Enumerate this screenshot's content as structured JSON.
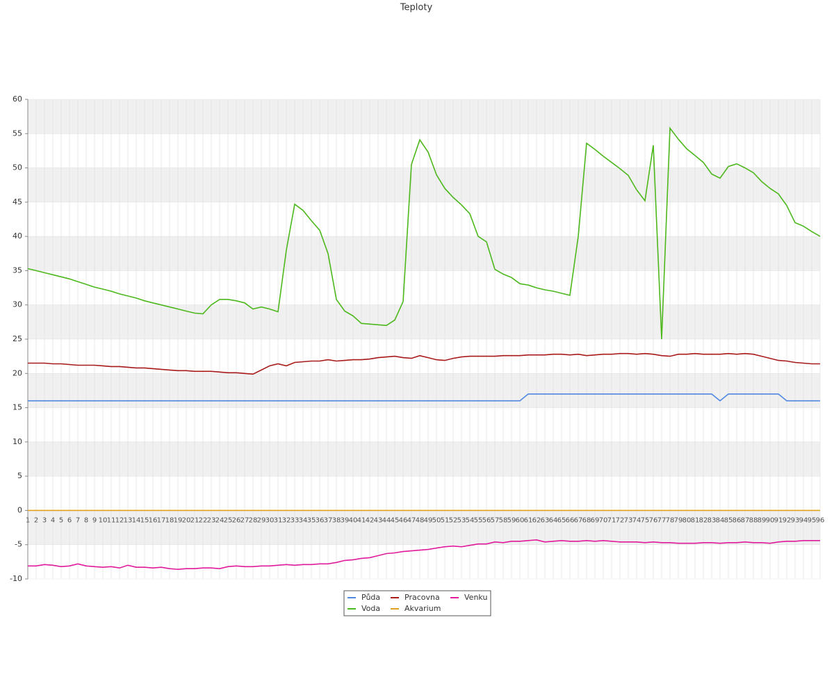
{
  "chart_data": {
    "type": "line",
    "title": "Teploty",
    "x": [
      1,
      2,
      3,
      4,
      5,
      6,
      7,
      8,
      9,
      10,
      11,
      12,
      13,
      14,
      15,
      16,
      17,
      18,
      19,
      20,
      21,
      22,
      23,
      24,
      25,
      26,
      27,
      28,
      29,
      30,
      31,
      32,
      33,
      34,
      35,
      36,
      37,
      38,
      39,
      40,
      41,
      42,
      43,
      44,
      45,
      46,
      47,
      48,
      49,
      50,
      51,
      52,
      53,
      54,
      55,
      56,
      57,
      58,
      59,
      60,
      61,
      62,
      63,
      64,
      65,
      66,
      67,
      68,
      69,
      70,
      71,
      72,
      73,
      74,
      75,
      76,
      77,
      78,
      79,
      80,
      81,
      82,
      83,
      84,
      85,
      86,
      87,
      88,
      89,
      90,
      91,
      92,
      93,
      94,
      95,
      96
    ],
    "series": [
      {
        "name": "Půda",
        "color": "#4f86e0",
        "values": [
          16,
          16,
          16,
          16,
          16,
          16,
          16,
          16,
          16,
          16,
          16,
          16,
          16,
          16,
          16,
          16,
          16,
          16,
          16,
          16,
          16,
          16,
          16,
          16,
          16,
          16,
          16,
          16,
          16,
          16,
          16,
          16,
          16,
          16,
          16,
          16,
          16,
          16,
          16,
          16,
          16,
          16,
          16,
          16,
          16,
          16,
          16,
          16,
          16,
          16,
          16,
          16,
          16,
          16,
          16,
          16,
          16,
          16,
          16,
          16,
          17,
          17,
          17,
          17,
          17,
          17,
          17,
          17,
          17,
          17,
          17,
          17,
          17,
          17,
          17,
          17,
          17,
          17,
          17,
          17,
          17,
          17,
          17,
          16,
          17,
          17,
          17,
          17,
          17,
          17,
          17,
          16,
          16,
          16,
          16,
          16
        ]
      },
      {
        "name": "Voda",
        "color": "#4cb81c",
        "values": [
          35.3,
          35.0,
          34.7,
          34.4,
          34.1,
          33.8,
          33.4,
          33.0,
          32.6,
          32.3,
          32.0,
          31.6,
          31.3,
          31.0,
          30.6,
          30.3,
          30.0,
          29.7,
          29.4,
          29.1,
          28.8,
          28.7,
          30.0,
          30.8,
          30.8,
          30.6,
          30.3,
          29.4,
          29.7,
          29.4,
          29.0,
          38.0,
          44.7,
          43.8,
          42.3,
          40.9,
          37.5,
          30.8,
          29.1,
          28.4,
          27.3,
          27.2,
          27.1,
          27.0,
          27.8,
          30.5,
          50.5,
          54.1,
          52.3,
          49.0,
          47.0,
          45.7,
          44.6,
          43.3,
          40.0,
          39.2,
          35.2,
          34.5,
          34.0,
          33.1,
          32.9,
          32.5,
          32.2,
          32.0,
          31.7,
          31.4,
          40.0,
          53.6,
          52.7,
          51.7,
          50.8,
          49.9,
          48.9,
          46.8,
          45.2,
          53.3,
          25.0,
          55.8,
          54.2,
          52.8,
          51.8,
          50.8,
          49.1,
          48.5,
          50.2,
          50.6,
          50.0,
          49.3,
          48.0,
          47.0,
          46.2,
          44.5,
          42.0,
          41.5,
          40.7,
          40.0
        ]
      },
      {
        "name": "Pracovna",
        "color": "#a81a1a",
        "values": [
          21.5,
          21.5,
          21.5,
          21.4,
          21.4,
          21.3,
          21.2,
          21.2,
          21.2,
          21.1,
          21.0,
          21.0,
          20.9,
          20.8,
          20.8,
          20.7,
          20.6,
          20.5,
          20.4,
          20.4,
          20.3,
          20.3,
          20.3,
          20.2,
          20.1,
          20.1,
          20.0,
          19.9,
          20.5,
          21.1,
          21.4,
          21.1,
          21.6,
          21.7,
          21.8,
          21.8,
          22.0,
          21.8,
          21.9,
          22.0,
          22.0,
          22.1,
          22.3,
          22.4,
          22.5,
          22.3,
          22.2,
          22.6,
          22.3,
          22.0,
          21.9,
          22.2,
          22.4,
          22.5,
          22.5,
          22.5,
          22.5,
          22.6,
          22.6,
          22.6,
          22.7,
          22.7,
          22.7,
          22.8,
          22.8,
          22.7,
          22.8,
          22.6,
          22.7,
          22.8,
          22.8,
          22.9,
          22.9,
          22.8,
          22.9,
          22.8,
          22.6,
          22.5,
          22.8,
          22.8,
          22.9,
          22.8,
          22.8,
          22.8,
          22.9,
          22.8,
          22.9,
          22.8,
          22.5,
          22.2,
          21.9,
          21.8,
          21.6,
          21.5,
          21.4,
          21.4
        ]
      },
      {
        "name": "Akvarium",
        "color": "#e0a020",
        "values": [
          0,
          0,
          0,
          0,
          0,
          0,
          0,
          0,
          0,
          0,
          0,
          0,
          0,
          0,
          0,
          0,
          0,
          0,
          0,
          0,
          0,
          0,
          0,
          0,
          0,
          0,
          0,
          0,
          0,
          0,
          0,
          0,
          0,
          0,
          0,
          0,
          0,
          0,
          0,
          0,
          0,
          0,
          0,
          0,
          0,
          0,
          0,
          0,
          0,
          0,
          0,
          0,
          0,
          0,
          0,
          0,
          0,
          0,
          0,
          0,
          0,
          0,
          0,
          0,
          0,
          0,
          0,
          0,
          0,
          0,
          0,
          0,
          0,
          0,
          0,
          0,
          0,
          0,
          0,
          0,
          0,
          0,
          0,
          0,
          0,
          0,
          0,
          0,
          0,
          0,
          0,
          0,
          0,
          0,
          0,
          0
        ]
      },
      {
        "name": "Venku",
        "color": "#e01a9a",
        "values": [
          -8.1,
          -8.1,
          -7.9,
          -8.0,
          -8.2,
          -8.1,
          -7.8,
          -8.1,
          -8.2,
          -8.3,
          -8.2,
          -8.4,
          -8.0,
          -8.3,
          -8.3,
          -8.4,
          -8.3,
          -8.5,
          -8.6,
          -8.5,
          -8.5,
          -8.4,
          -8.4,
          -8.5,
          -8.2,
          -8.1,
          -8.2,
          -8.2,
          -8.1,
          -8.1,
          -8.0,
          -7.9,
          -8.0,
          -7.9,
          -7.9,
          -7.8,
          -7.8,
          -7.6,
          -7.3,
          -7.2,
          -7.0,
          -6.9,
          -6.6,
          -6.3,
          -6.2,
          -6.0,
          -5.9,
          -5.8,
          -5.7,
          -5.5,
          -5.3,
          -5.2,
          -5.3,
          -5.1,
          -4.9,
          -4.9,
          -4.6,
          -4.7,
          -4.5,
          -4.5,
          -4.4,
          -4.3,
          -4.6,
          -4.5,
          -4.4,
          -4.5,
          -4.5,
          -4.4,
          -4.5,
          -4.4,
          -4.5,
          -4.6,
          -4.6,
          -4.6,
          -4.7,
          -4.6,
          -4.7,
          -4.7,
          -4.8,
          -4.8,
          -4.8,
          -4.7,
          -4.7,
          -4.8,
          -4.7,
          -4.7,
          -4.6,
          -4.7,
          -4.7,
          -4.8,
          -4.6,
          -4.5,
          -4.5,
          -4.4,
          -4.4,
          -4.4
        ]
      }
    ],
    "ylim": [
      -10,
      60
    ],
    "yticks": [
      -10,
      -5,
      0,
      5,
      10,
      15,
      20,
      25,
      30,
      35,
      40,
      45,
      50,
      55,
      60
    ],
    "grid": true,
    "legend": "bottom"
  }
}
